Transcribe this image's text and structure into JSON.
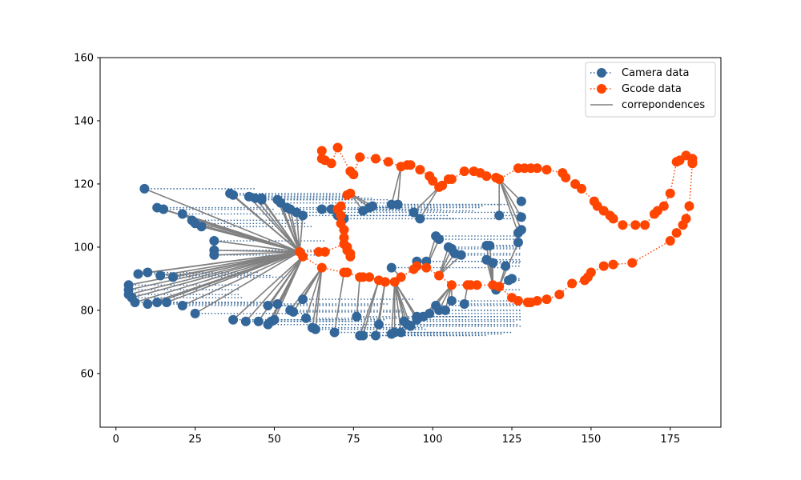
{
  "chart_data": {
    "type": "scatter",
    "title": "",
    "xlabel": "",
    "ylabel": "",
    "xlim": [
      -5,
      191
    ],
    "ylim": [
      43,
      160
    ],
    "xticks": [
      0,
      25,
      50,
      75,
      100,
      125,
      150,
      175
    ],
    "yticks": [
      60,
      80,
      100,
      120,
      140,
      160
    ],
    "grid": false,
    "legend_position": "top-right",
    "correspondence_center": [
      58,
      98.5
    ],
    "series": [
      {
        "name": "Camera data",
        "color": "#336699",
        "marker": "o",
        "linestyle": "dotted",
        "points": [
          [
            9,
            118.5
          ],
          [
            13,
            112.5
          ],
          [
            15,
            112
          ],
          [
            21,
            110.5
          ],
          [
            24,
            108.5
          ],
          [
            25,
            107.5
          ],
          [
            27,
            106.5
          ],
          [
            31,
            102
          ],
          [
            31,
            99
          ],
          [
            31,
            97.5
          ],
          [
            4,
            88
          ],
          [
            4,
            86.5
          ],
          [
            4,
            85
          ],
          [
            5,
            84
          ],
          [
            6,
            82.5
          ],
          [
            7,
            91.5
          ],
          [
            10,
            92
          ],
          [
            10,
            82
          ],
          [
            13,
            82.5
          ],
          [
            14,
            91
          ],
          [
            16,
            82.5
          ],
          [
            18,
            90.5
          ],
          [
            21,
            81.5
          ],
          [
            25,
            79
          ],
          [
            36,
            117
          ],
          [
            37,
            116.5
          ],
          [
            42,
            116
          ],
          [
            44,
            115.5
          ],
          [
            46,
            115.5
          ],
          [
            46,
            115
          ],
          [
            51,
            115
          ],
          [
            52,
            114
          ],
          [
            54,
            112.5
          ],
          [
            55,
            112
          ],
          [
            57,
            111
          ],
          [
            59,
            110
          ],
          [
            65,
            112
          ],
          [
            68,
            112
          ],
          [
            70,
            110
          ],
          [
            72,
            109
          ],
          [
            78,
            111.5
          ],
          [
            80,
            112.5
          ],
          [
            81,
            113
          ],
          [
            87,
            113.5
          ],
          [
            89,
            113.5
          ],
          [
            94,
            111
          ],
          [
            96,
            109
          ],
          [
            37,
            77
          ],
          [
            41,
            76.5
          ],
          [
            45,
            76.5
          ],
          [
            48,
            75.5
          ],
          [
            49,
            76.5
          ],
          [
            50,
            77
          ],
          [
            48,
            81.5
          ],
          [
            51,
            82
          ],
          [
            55,
            80
          ],
          [
            56,
            79.5
          ],
          [
            59,
            83.5
          ],
          [
            60,
            77.5
          ],
          [
            62,
            74.5
          ],
          [
            63,
            74
          ],
          [
            69,
            73
          ],
          [
            76,
            78
          ],
          [
            77,
            72
          ],
          [
            78,
            72
          ],
          [
            82,
            72
          ],
          [
            83,
            75.5
          ],
          [
            87,
            72.5
          ],
          [
            88,
            73
          ],
          [
            90,
            73
          ],
          [
            91,
            76.5
          ],
          [
            92,
            75.5
          ],
          [
            93,
            75
          ],
          [
            95,
            77
          ],
          [
            95,
            78
          ],
          [
            97,
            78
          ],
          [
            99,
            79
          ],
          [
            101,
            81.5
          ],
          [
            102,
            80
          ],
          [
            104,
            80
          ],
          [
            106,
            83
          ],
          [
            110,
            82
          ],
          [
            87,
            93.5
          ],
          [
            95,
            95.5
          ],
          [
            98,
            95.5
          ],
          [
            101,
            103.5
          ],
          [
            102,
            102.5
          ],
          [
            105,
            100
          ],
          [
            106,
            99.5
          ],
          [
            107,
            98
          ],
          [
            109,
            97.5
          ],
          [
            117,
            96
          ],
          [
            117,
            100.5
          ],
          [
            118,
            100.5
          ],
          [
            119,
            95
          ],
          [
            120,
            86.5
          ],
          [
            121,
            110
          ],
          [
            123,
            94
          ],
          [
            124,
            89.5
          ],
          [
            125,
            90
          ],
          [
            127,
            101.5
          ],
          [
            127,
            104.5
          ],
          [
            128,
            105.5
          ],
          [
            128,
            109.5
          ],
          [
            128,
            114.5
          ]
        ]
      },
      {
        "name": "Gcode data",
        "color": "#ff4500",
        "marker": "o",
        "linestyle": "dotted",
        "points": [
          [
            65,
            130.5
          ],
          [
            65,
            128
          ],
          [
            66,
            127.5
          ],
          [
            68,
            126.5
          ],
          [
            70,
            131.5
          ],
          [
            74,
            124
          ],
          [
            75,
            123
          ],
          [
            77,
            128.5
          ],
          [
            82,
            128
          ],
          [
            86,
            127
          ],
          [
            90,
            125.5
          ],
          [
            92,
            126
          ],
          [
            93,
            126
          ],
          [
            96,
            124.5
          ],
          [
            99,
            122.5
          ],
          [
            100,
            121
          ],
          [
            102,
            119
          ],
          [
            103,
            119.5
          ],
          [
            105,
            121.5
          ],
          [
            106,
            121.5
          ],
          [
            110,
            124
          ],
          [
            113,
            124
          ],
          [
            115,
            123.5
          ],
          [
            117,
            122.5
          ],
          [
            120,
            122
          ],
          [
            121,
            121.5
          ],
          [
            127,
            125
          ],
          [
            129,
            125
          ],
          [
            131,
            125
          ],
          [
            133,
            125
          ],
          [
            136,
            124.5
          ],
          [
            141,
            123.5
          ],
          [
            142,
            122
          ],
          [
            145,
            120
          ],
          [
            147,
            118.5
          ],
          [
            151,
            114.5
          ],
          [
            152,
            113
          ],
          [
            154,
            111.5
          ],
          [
            156,
            110
          ],
          [
            157,
            109
          ],
          [
            160,
            107
          ],
          [
            164,
            107
          ],
          [
            167,
            107
          ],
          [
            170,
            110.5
          ],
          [
            171,
            111.5
          ],
          [
            173,
            113
          ],
          [
            175,
            117
          ],
          [
            177,
            127
          ],
          [
            178,
            127.5
          ],
          [
            180,
            129
          ],
          [
            182,
            128
          ],
          [
            182,
            127
          ],
          [
            182,
            126.5
          ],
          [
            181,
            113
          ],
          [
            180,
            109
          ],
          [
            179,
            107
          ],
          [
            177,
            104.5
          ],
          [
            175,
            102
          ],
          [
            163,
            95
          ],
          [
            157,
            94.5
          ],
          [
            154,
            94
          ],
          [
            150,
            92
          ],
          [
            149,
            90.5
          ],
          [
            148,
            89.5
          ],
          [
            144,
            88.5
          ],
          [
            140,
            85
          ],
          [
            136,
            83.5
          ],
          [
            133,
            83
          ],
          [
            131,
            82.5
          ],
          [
            130,
            82.5
          ],
          [
            127,
            83
          ],
          [
            125,
            84
          ],
          [
            121,
            87.5
          ],
          [
            119,
            88
          ],
          [
            114,
            88
          ],
          [
            112,
            88
          ],
          [
            111,
            88
          ],
          [
            106,
            88
          ],
          [
            102,
            91
          ],
          [
            98,
            93.5
          ],
          [
            95,
            94
          ],
          [
            94,
            93
          ],
          [
            90,
            90.5
          ],
          [
            88,
            89
          ],
          [
            85,
            89
          ],
          [
            83,
            89.5
          ],
          [
            80,
            90.5
          ],
          [
            78,
            90.5
          ],
          [
            77,
            90.5
          ],
          [
            73,
            92
          ],
          [
            72,
            92
          ],
          [
            65,
            93.5
          ],
          [
            59,
            97
          ],
          [
            58,
            98.5
          ],
          [
            64,
            98.5
          ],
          [
            66,
            98.5
          ],
          [
            72,
            101
          ],
          [
            73,
            100
          ],
          [
            73,
            99
          ],
          [
            74,
            98
          ],
          [
            74,
            97
          ],
          [
            72,
            103
          ],
          [
            72,
            105.5
          ],
          [
            71,
            107.5
          ],
          [
            71,
            110
          ],
          [
            70,
            112
          ],
          [
            71,
            113
          ],
          [
            73,
            116.5
          ],
          [
            74,
            117
          ]
        ]
      }
    ],
    "correspondence_lines": {
      "name": "correpondences",
      "color": "#808080",
      "linestyle": "solid"
    }
  }
}
